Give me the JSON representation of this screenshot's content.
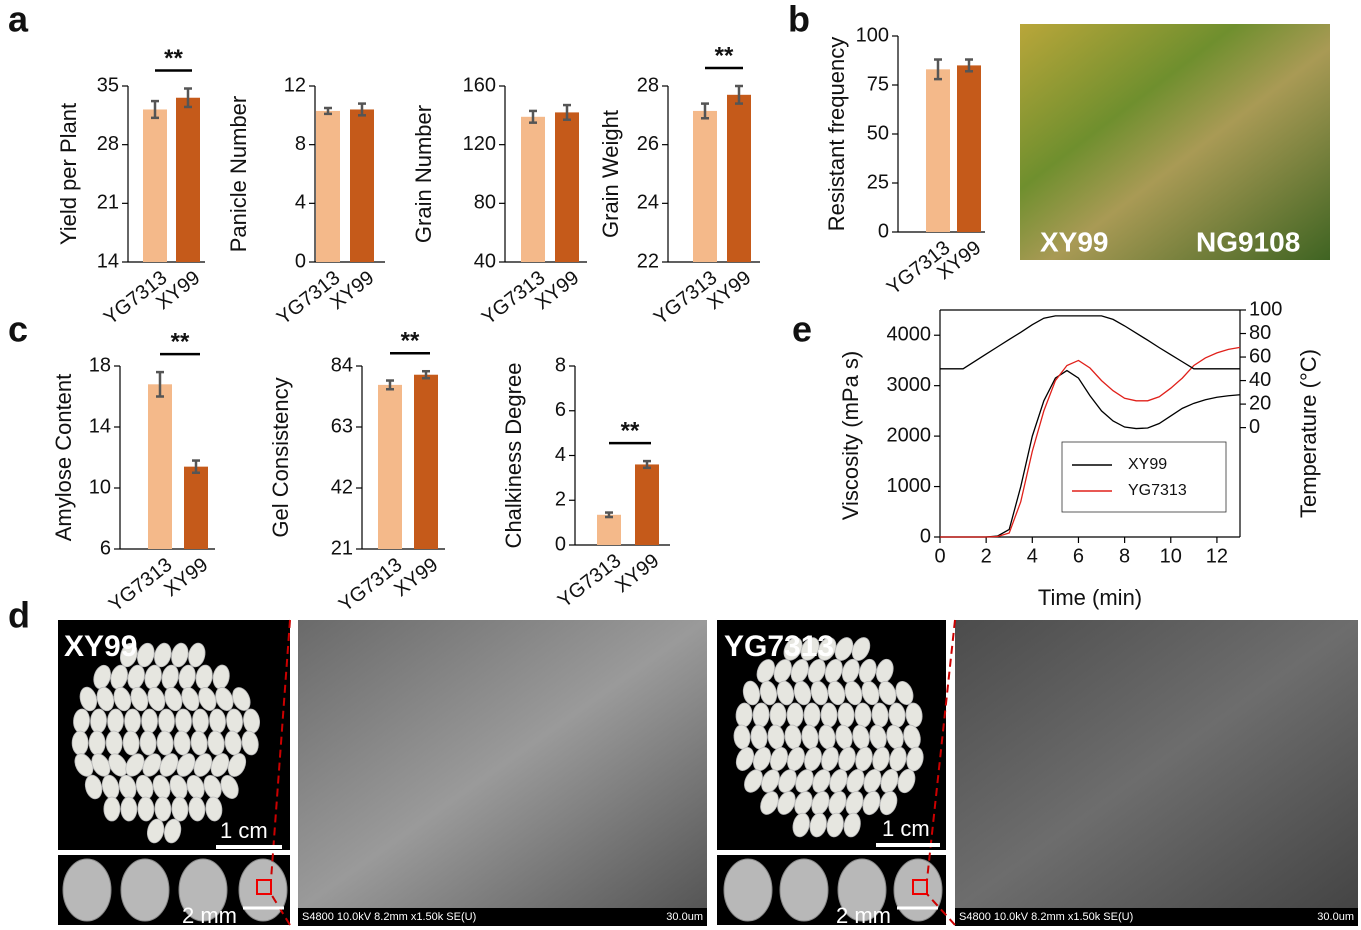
{
  "panel_labels": [
    "a",
    "b",
    "c",
    "d",
    "e"
  ],
  "chart_data": [
    {
      "type": "bar",
      "ylabel": "Yield per Plant",
      "categories": [
        "YG7313",
        "XY99"
      ],
      "values": [
        32.2,
        33.6
      ],
      "errors": [
        1.0,
        1.1
      ],
      "colors": [
        "#f4b98a",
        "#c55a1a"
      ],
      "ylim": [
        14,
        35
      ],
      "yticks": [
        14,
        21,
        28,
        35
      ],
      "significance": "**"
    },
    {
      "type": "bar",
      "ylabel": "Panicle Number",
      "categories": [
        "YG7313",
        "XY99"
      ],
      "values": [
        10.3,
        10.4
      ],
      "errors": [
        0.2,
        0.4
      ],
      "colors": [
        "#f4b98a",
        "#c55a1a"
      ],
      "ylim": [
        0,
        12
      ],
      "yticks": [
        0,
        4,
        8,
        12
      ]
    },
    {
      "type": "bar",
      "ylabel": "Grain Number",
      "categories": [
        "YG7313",
        "XY99"
      ],
      "values": [
        139,
        142
      ],
      "errors": [
        4,
        5
      ],
      "colors": [
        "#f4b98a",
        "#c55a1a"
      ],
      "ylim": [
        40,
        160
      ],
      "yticks": [
        40,
        80,
        120,
        160
      ]
    },
    {
      "type": "bar",
      "ylabel": "Grain Weight",
      "categories": [
        "YG7313",
        "XY99"
      ],
      "values": [
        27.15,
        27.7
      ],
      "errors": [
        0.25,
        0.3
      ],
      "colors": [
        "#f4b98a",
        "#c55a1a"
      ],
      "ylim": [
        22,
        28
      ],
      "yticks": [
        22,
        24,
        26,
        28
      ],
      "significance": "**"
    },
    {
      "type": "bar",
      "ylabel": "Resistant frequency",
      "categories": [
        "YG7313",
        "XY99"
      ],
      "values": [
        83,
        85
      ],
      "errors": [
        5,
        3
      ],
      "colors": [
        "#f4b98a",
        "#c55a1a"
      ],
      "ylim": [
        0,
        100
      ],
      "yticks": [
        0,
        25,
        50,
        75,
        100
      ]
    },
    {
      "type": "bar",
      "ylabel": "Amylose Content",
      "categories": [
        "YG7313",
        "XY99"
      ],
      "values": [
        16.8,
        11.4
      ],
      "errors": [
        0.8,
        0.4
      ],
      "colors": [
        "#f4b98a",
        "#c55a1a"
      ],
      "ylim": [
        6,
        18
      ],
      "yticks": [
        6,
        10,
        14,
        18
      ],
      "significance": "**"
    },
    {
      "type": "bar",
      "ylabel": "Gel Consistency",
      "categories": [
        "YG7313",
        "XY99"
      ],
      "values": [
        77.5,
        81
      ],
      "errors": [
        1.5,
        1.2
      ],
      "colors": [
        "#f4b98a",
        "#c55a1a"
      ],
      "ylim": [
        21,
        84
      ],
      "yticks": [
        21,
        42,
        63,
        84
      ],
      "significance": "**"
    },
    {
      "type": "bar",
      "ylabel": "Chalkiness Degree",
      "categories": [
        "YG7313",
        "XY99"
      ],
      "values": [
        1.35,
        3.6
      ],
      "errors": [
        0.1,
        0.15
      ],
      "colors": [
        "#f4b98a",
        "#c55a1a"
      ],
      "ylim": [
        0,
        8
      ],
      "yticks": [
        0,
        2,
        4,
        6,
        8
      ],
      "significance": "**"
    },
    {
      "type": "line",
      "xlabel": "Time (min)",
      "ylabel": "Viscosity (mPa s)",
      "y2label": "Temperature (°C)",
      "x": [
        0,
        1,
        2,
        2.5,
        3,
        3.5,
        4,
        4.5,
        5,
        5.5,
        6,
        6.5,
        7,
        7.5,
        8,
        8.5,
        9,
        9.5,
        10,
        10.5,
        11,
        11.5,
        12,
        12.5,
        13
      ],
      "series": [
        {
          "name": "XY99",
          "color": "#000000",
          "values": [
            0,
            0,
            0,
            20,
            150,
            1000,
            2000,
            2700,
            3150,
            3300,
            3150,
            2800,
            2500,
            2300,
            2180,
            2150,
            2160,
            2250,
            2400,
            2550,
            2650,
            2720,
            2770,
            2800,
            2820
          ]
        },
        {
          "name": "YG7313",
          "color": "#e0201a",
          "values": [
            0,
            0,
            0,
            10,
            80,
            700,
            1700,
            2500,
            3100,
            3400,
            3500,
            3350,
            3100,
            2900,
            2750,
            2700,
            2700,
            2780,
            2950,
            3150,
            3400,
            3550,
            3650,
            3720,
            3760
          ]
        },
        {
          "color": "#000000",
          "axis": "y2",
          "values": [
            50,
            50,
            62.5,
            68.75,
            75,
            81,
            87.5,
            93,
            95,
            95,
            95,
            95,
            95,
            92,
            86.5,
            80.4,
            74.3,
            68,
            62,
            56,
            50,
            50,
            50,
            50,
            50
          ]
        }
      ],
      "xlim": [
        0,
        13
      ],
      "xticks": [
        0,
        2,
        4,
        6,
        8,
        10,
        12
      ],
      "ylim": [
        0,
        4500
      ],
      "yticks": [
        0,
        1000,
        2000,
        3000,
        4000
      ],
      "y2lim": [
        -93,
        100
      ],
      "y2ticks": [
        0,
        20,
        40,
        60,
        80,
        100
      ]
    }
  ],
  "photos": {
    "b": {
      "labels": [
        "XY99",
        "NG9108"
      ]
    },
    "d": [
      {
        "variety": "XY99",
        "scale_photo": "1 cm",
        "scale_grain": "2 mm",
        "sem_info": "S4800 10.0kV 8.2mm x1.50k SE(U)",
        "sem_scale": "30.0um"
      },
      {
        "variety": "YG7313",
        "scale_photo": "1 cm",
        "scale_grain": "2 mm",
        "sem_info": "S4800 10.0kV 8.2mm x1.50k SE(U)",
        "sem_scale": "30.0um"
      }
    ]
  }
}
